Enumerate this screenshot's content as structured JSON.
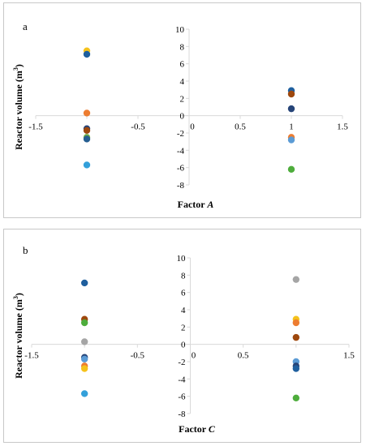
{
  "chart_data": [
    {
      "type": "scatter",
      "panel_label": "a",
      "xlabel": "Factor A",
      "xlabel_parts": [
        "Factor ",
        "A"
      ],
      "ylabel": "Reactor volume (m3)",
      "ylabel_parts": [
        "Reactor volume (m",
        "3",
        ")"
      ],
      "xlim": [
        -1.5,
        1.5
      ],
      "ylim": [
        -8,
        10
      ],
      "x_ticks": [
        -1.5,
        -1,
        -0.5,
        0,
        0.5,
        1,
        1.5
      ],
      "x_tick_labels": [
        "-1.5",
        "",
        "-0.5",
        "0",
        "0.5",
        "1",
        "1.5"
      ],
      "y_ticks": [
        -8,
        -6,
        -4,
        -2,
        0,
        2,
        4,
        6,
        8,
        10
      ],
      "y_tick_labels": [
        "-8",
        "-6",
        "-4",
        "-2",
        "0",
        "2",
        "4",
        "6",
        "8",
        "10"
      ],
      "grid": false,
      "points": [
        {
          "x": -1,
          "y": 7.5,
          "color": "#f5c21b"
        },
        {
          "x": -1,
          "y": 7.1,
          "color": "#1f5f9e"
        },
        {
          "x": -1,
          "y": 0.3,
          "color": "#ed7d31"
        },
        {
          "x": -1,
          "y": -1.5,
          "color": "#264478"
        },
        {
          "x": -1,
          "y": -1.7,
          "color": "#9e480e"
        },
        {
          "x": -1,
          "y": -2.5,
          "color": "#70ad47"
        },
        {
          "x": -1,
          "y": -2.7,
          "color": "#255e91"
        },
        {
          "x": -1,
          "y": -5.7,
          "color": "#33a0da"
        },
        {
          "x": 1,
          "y": 2.9,
          "color": "#1f5f9e"
        },
        {
          "x": 1,
          "y": 2.5,
          "color": "#9e480e"
        },
        {
          "x": 1,
          "y": 0.8,
          "color": "#264478"
        },
        {
          "x": 1,
          "y": -2.5,
          "color": "#ed7d31"
        },
        {
          "x": 1,
          "y": -2.8,
          "color": "#5b9bd5"
        },
        {
          "x": 1,
          "y": -6.2,
          "color": "#4ead3c"
        }
      ]
    },
    {
      "type": "scatter",
      "panel_label": "b",
      "xlabel": "Factor C",
      "xlabel_parts": [
        "Factor ",
        "C"
      ],
      "ylabel": "Reactor volume (m3)",
      "ylabel_parts": [
        "Reactor volume (m",
        "3",
        ")"
      ],
      "xlim": [
        -1.5,
        1.5
      ],
      "ylim": [
        -8,
        10
      ],
      "x_ticks": [
        -1.5,
        -1,
        -0.5,
        0,
        0.5,
        1,
        1.5
      ],
      "x_tick_labels": [
        "-1.5",
        "",
        "-0.5",
        "0",
        "0.5",
        "",
        "1.5"
      ],
      "y_ticks": [
        -8,
        -6,
        -4,
        -2,
        0,
        2,
        4,
        6,
        8,
        10
      ],
      "y_tick_labels": [
        "-8",
        "-6",
        "-4",
        "-2",
        "0",
        "2",
        "4",
        "6",
        "8",
        "10"
      ],
      "grid": false,
      "points": [
        {
          "x": -1,
          "y": 7.1,
          "color": "#1f5f9e"
        },
        {
          "x": -1,
          "y": 2.9,
          "color": "#9e480e"
        },
        {
          "x": -1,
          "y": 2.5,
          "color": "#4ead3c"
        },
        {
          "x": -1,
          "y": 0.3,
          "color": "#a5a5a5"
        },
        {
          "x": -1,
          "y": -1.5,
          "color": "#264478"
        },
        {
          "x": -1,
          "y": -1.7,
          "color": "#5b9bd5"
        },
        {
          "x": -1,
          "y": -2.5,
          "color": "#ed7d31"
        },
        {
          "x": -1,
          "y": -2.8,
          "color": "#f5c21b"
        },
        {
          "x": -1,
          "y": -5.7,
          "color": "#33a0da"
        },
        {
          "x": 1,
          "y": 7.5,
          "color": "#a5a5a5"
        },
        {
          "x": 1,
          "y": 2.9,
          "color": "#f5c21b"
        },
        {
          "x": 1,
          "y": 2.5,
          "color": "#ed7d31"
        },
        {
          "x": 1,
          "y": 0.8,
          "color": "#9e480e"
        },
        {
          "x": 1,
          "y": -2.0,
          "color": "#5b9bd5"
        },
        {
          "x": 1,
          "y": -2.5,
          "color": "#264478"
        },
        {
          "x": 1,
          "y": -2.8,
          "color": "#1f5f9e"
        },
        {
          "x": 1,
          "y": -6.2,
          "color": "#4ead3c"
        }
      ]
    }
  ]
}
